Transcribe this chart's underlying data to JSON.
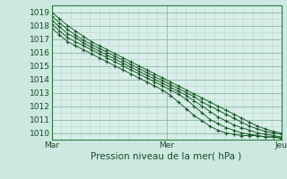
{
  "title": "Pression niveau de la mer( hPa )",
  "bg_color": "#cce8e0",
  "plot_bg": "#d8eee8",
  "grid_color_minor": "#b8d8cc",
  "grid_color_major": "#88b8a8",
  "line_color": "#1a5a28",
  "spine_color": "#2a7a40",
  "ylim": [
    1009.5,
    1019.5
  ],
  "xlim": [
    0,
    48
  ],
  "xtick_positions": [
    0,
    24,
    48
  ],
  "xtick_labels": [
    "Mar",
    "Mer",
    "Jeu"
  ],
  "ytick_positions": [
    1010,
    1011,
    1012,
    1013,
    1014,
    1015,
    1016,
    1017,
    1018,
    1019
  ],
  "lines": [
    [
      1019.0,
      1018.5,
      1018.0,
      1017.6,
      1017.2,
      1016.8,
      1016.5,
      1016.2,
      1015.9,
      1015.6,
      1015.3,
      1015.0,
      1014.7,
      1014.4,
      1014.1,
      1013.8,
      1013.5,
      1013.2,
      1012.9,
      1012.6,
      1012.3,
      1012.0,
      1011.7,
      1011.4,
      1011.1,
      1010.8,
      1010.5,
      1010.3,
      1010.1,
      1010.0
    ],
    [
      1018.7,
      1018.2,
      1017.7,
      1017.3,
      1016.9,
      1016.6,
      1016.3,
      1016.0,
      1015.7,
      1015.4,
      1015.1,
      1014.8,
      1014.5,
      1014.2,
      1013.9,
      1013.6,
      1013.3,
      1013.0,
      1012.7,
      1012.3,
      1012.0,
      1011.7,
      1011.4,
      1011.1,
      1010.8,
      1010.5,
      1010.3,
      1010.1,
      1010.0,
      1009.9
    ],
    [
      1018.4,
      1017.9,
      1017.4,
      1017.1,
      1016.7,
      1016.4,
      1016.1,
      1015.8,
      1015.5,
      1015.2,
      1014.9,
      1014.6,
      1014.3,
      1014.0,
      1013.7,
      1013.4,
      1013.1,
      1012.8,
      1012.4,
      1012.0,
      1011.6,
      1011.2,
      1010.9,
      1010.6,
      1010.4,
      1010.2,
      1010.0,
      1009.9,
      1009.8,
      1009.7
    ],
    [
      1018.1,
      1017.6,
      1017.1,
      1016.8,
      1016.5,
      1016.2,
      1015.9,
      1015.6,
      1015.3,
      1015.0,
      1014.7,
      1014.4,
      1014.1,
      1013.8,
      1013.5,
      1013.2,
      1012.9,
      1012.5,
      1012.0,
      1011.5,
      1011.0,
      1010.7,
      1010.4,
      1010.2,
      1010.0,
      1009.9,
      1009.8,
      1009.7,
      1009.7,
      1009.6
    ],
    [
      1017.8,
      1017.3,
      1016.8,
      1016.5,
      1016.2,
      1015.9,
      1015.6,
      1015.3,
      1015.0,
      1014.7,
      1014.4,
      1014.1,
      1013.8,
      1013.5,
      1013.2,
      1012.8,
      1012.3,
      1011.8,
      1011.3,
      1010.9,
      1010.5,
      1010.2,
      1010.0,
      1009.9,
      1009.8,
      1009.8,
      1009.8,
      1009.7,
      1009.7,
      1009.6
    ]
  ]
}
